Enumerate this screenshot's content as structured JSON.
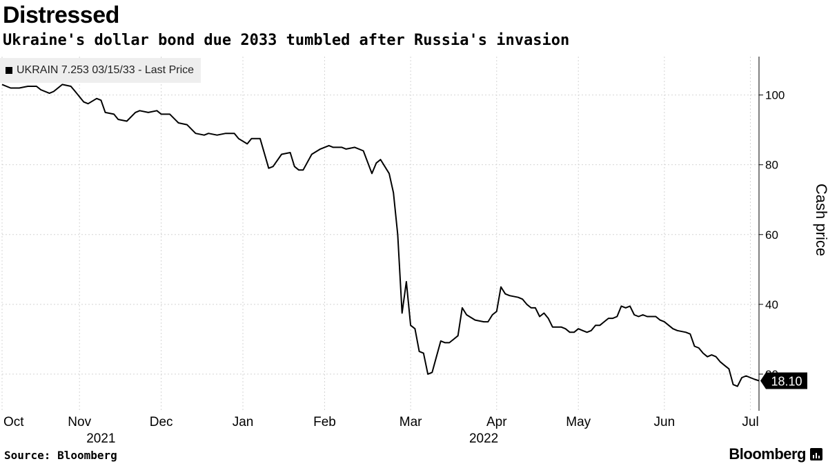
{
  "header": {
    "title": "Distressed",
    "subtitle": "Ukraine's dollar bond due 2033 tumbled after Russia's invasion"
  },
  "footer": {
    "source": "Source: Bloomberg",
    "brand": "Bloomberg"
  },
  "chart_data": {
    "type": "line",
    "series": [
      {
        "name": "UKRAIN 7.253 03/15/33 - Last Price",
        "color": "#000000",
        "points": [
          [
            0,
            103
          ],
          [
            2,
            102
          ],
          [
            4,
            102
          ],
          [
            6,
            102.5
          ],
          [
            8,
            102.5
          ],
          [
            9,
            101.5
          ],
          [
            11,
            100.5
          ],
          [
            12,
            101
          ],
          [
            14,
            103
          ],
          [
            16,
            102.5
          ],
          [
            17,
            101
          ],
          [
            19,
            98
          ],
          [
            20,
            97.5
          ],
          [
            22,
            99
          ],
          [
            23,
            98.5
          ],
          [
            24,
            95
          ],
          [
            26,
            94.5
          ],
          [
            27,
            93
          ],
          [
            29,
            92.5
          ],
          [
            31,
            95
          ],
          [
            32,
            95.5
          ],
          [
            34,
            95
          ],
          [
            36,
            95.5
          ],
          [
            37,
            94.5
          ],
          [
            39,
            94.5
          ],
          [
            41,
            92
          ],
          [
            43,
            91.5
          ],
          [
            45,
            89
          ],
          [
            47,
            88.5
          ],
          [
            48,
            89
          ],
          [
            50,
            88.5
          ],
          [
            52,
            89
          ],
          [
            54,
            89
          ],
          [
            55,
            87.5
          ],
          [
            57,
            86
          ],
          [
            58,
            87.5
          ],
          [
            60,
            87.5
          ],
          [
            62,
            79
          ],
          [
            63,
            79.5
          ],
          [
            65,
            83
          ],
          [
            67,
            83.5
          ],
          [
            68,
            79.5
          ],
          [
            69,
            78.5
          ],
          [
            70,
            78.5
          ],
          [
            72,
            83
          ],
          [
            74,
            84.5
          ],
          [
            76,
            85.5
          ],
          [
            77,
            85
          ],
          [
            79,
            85
          ],
          [
            80,
            84.5
          ],
          [
            82,
            85
          ],
          [
            84,
            84
          ],
          [
            86,
            77.5
          ],
          [
            87,
            80.5
          ],
          [
            88,
            81.5
          ],
          [
            89,
            79.5
          ],
          [
            90,
            77.5
          ],
          [
            91,
            72
          ],
          [
            92,
            60
          ],
          [
            93,
            37.5
          ],
          [
            94,
            46.5
          ],
          [
            95,
            34
          ],
          [
            96,
            33
          ],
          [
            97,
            26.5
          ],
          [
            98,
            26
          ],
          [
            99,
            20
          ],
          [
            100,
            20.5
          ],
          [
            101,
            25
          ],
          [
            102,
            29.5
          ],
          [
            103,
            29
          ],
          [
            104,
            29
          ],
          [
            105,
            30
          ],
          [
            106,
            31
          ],
          [
            107,
            39
          ],
          [
            108,
            37
          ],
          [
            110,
            35.5
          ],
          [
            112,
            35
          ],
          [
            113,
            35
          ],
          [
            114,
            37
          ],
          [
            115,
            38
          ],
          [
            116,
            45
          ],
          [
            117,
            43
          ],
          [
            118,
            42.5
          ],
          [
            120,
            42
          ],
          [
            121,
            41.5
          ],
          [
            122,
            40
          ],
          [
            123,
            39
          ],
          [
            124,
            39
          ],
          [
            125,
            36.5
          ],
          [
            126,
            37.5
          ],
          [
            127,
            36
          ],
          [
            128,
            33.5
          ],
          [
            130,
            33.5
          ],
          [
            131,
            33
          ],
          [
            132,
            32
          ],
          [
            133,
            32
          ],
          [
            134,
            33
          ],
          [
            135,
            32.5
          ],
          [
            136,
            32
          ],
          [
            137,
            32.5
          ],
          [
            138,
            34
          ],
          [
            139,
            34
          ],
          [
            140,
            35
          ],
          [
            141,
            36
          ],
          [
            142,
            36
          ],
          [
            143,
            36.5
          ],
          [
            144,
            39.5
          ],
          [
            145,
            39
          ],
          [
            146,
            39.5
          ],
          [
            147,
            37
          ],
          [
            148,
            36.5
          ],
          [
            149,
            37
          ],
          [
            150,
            36.5
          ],
          [
            151,
            36.5
          ],
          [
            152,
            36.5
          ],
          [
            153,
            35.5
          ],
          [
            154,
            35
          ],
          [
            155,
            34
          ],
          [
            156,
            33
          ],
          [
            157,
            32.5
          ],
          [
            159,
            32
          ],
          [
            160,
            31.5
          ],
          [
            161,
            28
          ],
          [
            162,
            27.5
          ],
          [
            163,
            26
          ],
          [
            164,
            25
          ],
          [
            165,
            25.5
          ],
          [
            166,
            25
          ],
          [
            167,
            23.5
          ],
          [
            168,
            22.5
          ],
          [
            169,
            21.5
          ],
          [
            170,
            17
          ],
          [
            171,
            16.5
          ],
          [
            172,
            19
          ],
          [
            173,
            19.5
          ],
          [
            174,
            19
          ],
          [
            175,
            18.5
          ],
          [
            176,
            18.1
          ]
        ]
      }
    ],
    "last_value": 18.1,
    "last_value_label": "18.10",
    "x_ticks": [
      {
        "label": "Oct",
        "pos": 0
      },
      {
        "label": "Nov",
        "pos": 18
      },
      {
        "label": "Dec",
        "pos": 37
      },
      {
        "label": "Jan",
        "pos": 56
      },
      {
        "label": "Feb",
        "pos": 75
      },
      {
        "label": "Mar",
        "pos": 95
      },
      {
        "label": "Apr",
        "pos": 115
      },
      {
        "label": "May",
        "pos": 134
      },
      {
        "label": "Jun",
        "pos": 154
      },
      {
        "label": "Jul",
        "pos": 174
      }
    ],
    "year_labels": [
      {
        "label": "2021",
        "pos": 23
      },
      {
        "label": "2022",
        "pos": 112
      }
    ],
    "xlim": [
      0,
      176
    ],
    "y_ticks": [
      20,
      40,
      60,
      80,
      100
    ],
    "y_tick_labels": [
      "20",
      "40",
      "60",
      "80",
      "100"
    ],
    "ylim": [
      9.5,
      111
    ],
    "ylabel": "Cash price",
    "grid": true,
    "legend_position": "top-left"
  }
}
